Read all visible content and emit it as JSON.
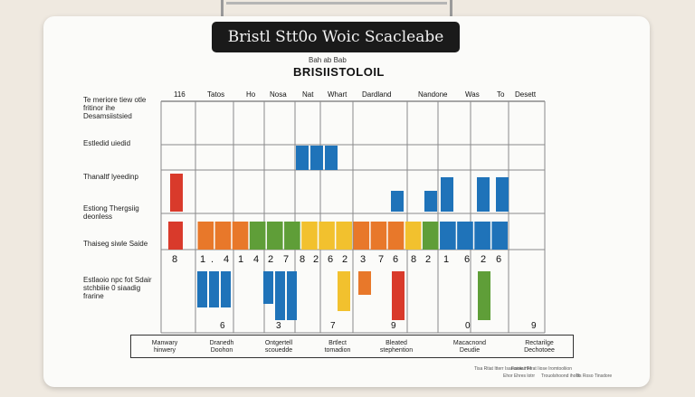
{
  "clip_title": "Bristl Stt0o Woic Scacleabe",
  "subtitle": "Bah ab Bab",
  "title": "BRISIISTOLOIL",
  "row_labels": [
    "Te meriore tiew otle fritinor ihe Desamsiistsied",
    "Estledid uiedid",
    "Thanaltf lyeedinp",
    "Estiong Thergsiig deonless",
    "Thaiseg siwle Saide",
    "Estlaoio npc fot Sdair stchbiiie 0 siaadig frarine"
  ],
  "column_headers": [
    "116",
    "Tatos",
    "Ho",
    "Nosa",
    "Nat",
    "Whart",
    "Dardland",
    "Nandone",
    "Was",
    "To",
    "Desett"
  ],
  "number_row": [
    "8",
    "1",
    ".",
    "4",
    "1",
    "4",
    "2",
    "7",
    "8",
    "2",
    "6",
    "2",
    "3",
    "7",
    "6",
    "8",
    "2",
    "1",
    "6",
    "2",
    "6"
  ],
  "bottom_numbers": [
    "6",
    "3",
    "7",
    "9",
    "0",
    "9"
  ],
  "legend_items": [
    "Manwary hinwery",
    "Dranedh Doohon",
    "Ontgertell scouedde",
    "Brtlect tomadion",
    "Bleated stephention",
    "Macacnond Deudie",
    "Rectarilge Dechotoee"
  ],
  "footnotes": [
    "Tisa Rtiat Itterr Isarssioe Hre",
    "Faoiias Ffrat Iiose Iromtooliion",
    "Ehor Ehres lotrr",
    "Trouolshoond ihoot",
    "Tis Roso Tinsdore"
  ],
  "colors": {
    "red": "#d93a2b",
    "orange": "#e8782a",
    "yellow": "#f2c12e",
    "green": "#5f9e38",
    "blue": "#1f73b9",
    "grid": "#8a8a8a"
  },
  "segments": [
    {
      "color": "orange"
    },
    {
      "color": "orange"
    },
    {
      "color": "orange"
    },
    {
      "color": "green"
    },
    {
      "color": "green"
    },
    {
      "color": "green"
    },
    {
      "color": "yellow"
    },
    {
      "color": "yellow"
    },
    {
      "color": "yellow"
    },
    {
      "color": "orange"
    },
    {
      "color": "orange"
    },
    {
      "color": "orange"
    },
    {
      "color": "yellow"
    },
    {
      "color": "green"
    },
    {
      "color": "blue"
    },
    {
      "color": "blue"
    },
    {
      "color": "blue"
    },
    {
      "color": "blue"
    }
  ]
}
